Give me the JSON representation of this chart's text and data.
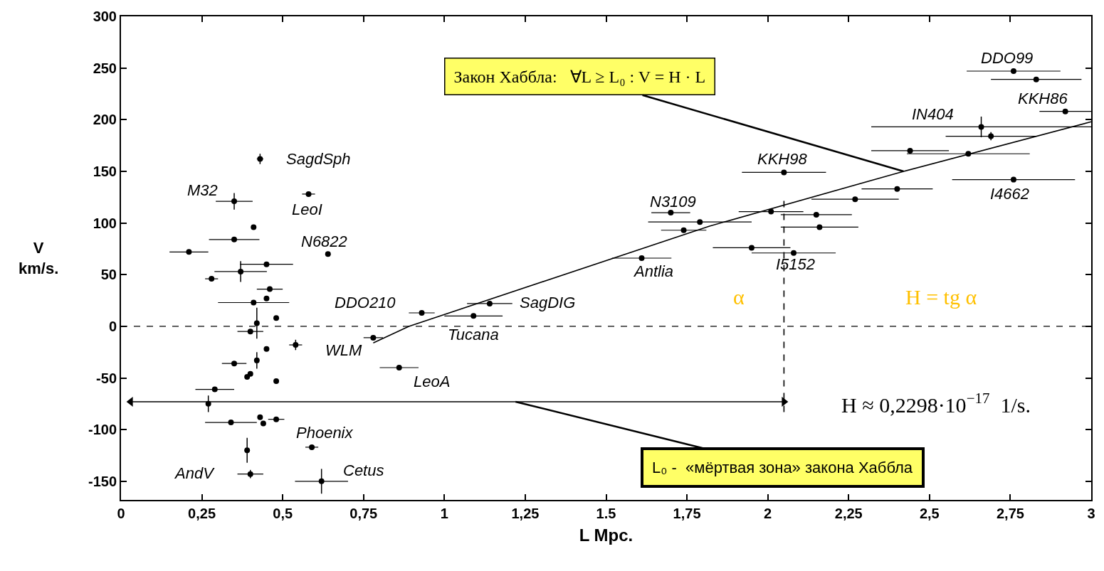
{
  "chart_data": {
    "type": "scatter",
    "xlabel": "L Mpc.",
    "ylabel": "V\nkm/s.",
    "xlim": [
      0,
      3
    ],
    "ylim": [
      -168,
      300
    ],
    "xticks": [
      0,
      {
        "value": 0.25,
        "label": "0,25"
      },
      {
        "value": 0.5,
        "label": "0,5"
      },
      {
        "value": 0.75,
        "label": "0,75"
      },
      1,
      {
        "value": 1.25,
        "label": "1,25"
      },
      1.5,
      {
        "value": 1.75,
        "label": "1,75"
      },
      2,
      {
        "value": 2.25,
        "label": "2,25"
      },
      {
        "value": 2.5,
        "label": "2,5"
      },
      {
        "value": 2.75,
        "label": "2,75"
      },
      3
    ],
    "yticks": [
      -150,
      -100,
      -50,
      0,
      50,
      100,
      150,
      200,
      250,
      300
    ],
    "series": [
      {
        "color": "#000000",
        "marker": "circle",
        "x": [
          0.43,
          0.35,
          0.58,
          0.41,
          0.35,
          0.21,
          0.64,
          0.45,
          0.37,
          0.28,
          0.46,
          0.45,
          0.41,
          0.48,
          0.42,
          0.4,
          0.54,
          0.45,
          0.42,
          0.35,
          0.4,
          0.39,
          0.48,
          0.29,
          0.27,
          0.34,
          0.43,
          0.44,
          0.48,
          0.59,
          0.39,
          0.4,
          0.62,
          0.78,
          0.93,
          0.86,
          1.09,
          1.14,
          1.61,
          1.7,
          1.79,
          1.74,
          2.76,
          2.83,
          2.92,
          2.66,
          2.69,
          2.44,
          2.62,
          2.05,
          2.76,
          2.4,
          2.27,
          2.01,
          2.15,
          2.16,
          1.95,
          2.08
        ],
        "values": [
          162,
          121,
          128,
          96,
          84,
          72,
          70,
          60,
          53,
          46,
          36,
          27,
          23,
          8,
          3,
          -5,
          -18,
          -22,
          -33,
          -36,
          -46,
          -49,
          -53,
          -61,
          -75,
          -93,
          -88,
          -94,
          -90,
          -117,
          -120,
          -143,
          -150,
          -11,
          13,
          -40,
          10,
          22,
          66,
          110,
          101,
          93,
          247,
          239,
          208,
          193,
          184,
          170,
          167,
          149,
          142,
          133,
          123,
          111,
          108,
          96,
          76,
          71
        ],
        "xerrors": [
          0.01,
          0.057,
          0.02,
          null,
          0.078,
          0.06,
          null,
          0.082,
          0.081,
          0.02,
          0.04,
          null,
          0.11,
          null,
          null,
          0.04,
          0.02,
          null,
          null,
          0.038,
          null,
          null,
          null,
          0.06,
          null,
          0.08,
          null,
          null,
          0.025,
          0.02,
          null,
          0.04,
          0.082,
          0.03,
          0.04,
          0.06,
          0.09,
          0.07,
          0.092,
          0.06,
          0.16,
          0.07,
          0.145,
          0.14,
          0.08,
          0.34,
          0.14,
          0.12,
          0.19,
          0.13,
          0.19,
          0.11,
          0.135,
          0.1,
          0.11,
          0.12,
          0.12,
          0.13
        ],
        "errors": [
          5,
          8,
          null,
          null,
          null,
          null,
          null,
          null,
          10,
          null,
          null,
          null,
          null,
          null,
          15,
          null,
          5,
          null,
          8,
          null,
          null,
          null,
          null,
          null,
          8,
          null,
          null,
          null,
          null,
          null,
          12,
          4,
          12,
          null,
          null,
          null,
          null,
          null,
          null,
          null,
          null,
          null,
          null,
          null,
          null,
          10,
          4,
          null,
          null,
          null,
          null,
          null,
          null,
          null,
          null,
          null,
          null,
          null
        ]
      },
      {
        "type": "line",
        "color": "#000000",
        "line_style": "solid",
        "marker": "none",
        "x": [
          0.78,
          0.89,
          1.82,
          2.42,
          3
        ],
        "values": [
          -16,
          0,
          97,
          150,
          198
        ]
      },
      {
        "type": "line",
        "color": "#000000",
        "line_style": "dashed",
        "marker": "none",
        "x": [
          2.05,
          2.05
        ],
        "values": [
          -83,
          123
        ]
      },
      {
        "type": "line",
        "color": "#000000",
        "line_style": "solid",
        "marker": "triangle",
        "x": [
          0.03,
          2.05
        ],
        "values": [
          -73,
          -73
        ]
      }
    ],
    "ref_lines": [
      {
        "axis": "y",
        "value": 0,
        "color": "#000000",
        "line_style": "dashed"
      }
    ],
    "annotations": [
      {
        "text": "SagdSph",
        "x": 0.43,
        "y": 162
      },
      {
        "text": "M32",
        "x": 0.35,
        "y": 121
      },
      {
        "text": "LeoI",
        "x": 0.58,
        "y": 128
      },
      {
        "text": "N6822",
        "x": 0.64,
        "y": 70
      },
      {
        "text": "DDO210",
        "x": 0.93,
        "y": 13
      },
      {
        "text": "SagDIG",
        "x": 1.14,
        "y": 22
      },
      {
        "text": "Tucana",
        "x": 1.09,
        "y": 10
      },
      {
        "text": "WLM",
        "x": 0.54,
        "y": -18
      },
      {
        "text": "LeoA",
        "x": 0.86,
        "y": -40
      },
      {
        "text": "Phoenix",
        "x": 0.59,
        "y": -117
      },
      {
        "text": "AndV",
        "x": 0.4,
        "y": -143
      },
      {
        "text": "Cetus",
        "x": 0.62,
        "y": -150
      },
      {
        "text": "Antlia",
        "x": 1.61,
        "y": 66
      },
      {
        "text": "N3109",
        "x": 1.7,
        "y": 110
      },
      {
        "text": "KKH98",
        "x": 2.05,
        "y": 149
      },
      {
        "text": "I5152",
        "x": 2.08,
        "y": 71
      },
      {
        "text": "IN404",
        "x": 2.66,
        "y": 193
      },
      {
        "text": "DDO99",
        "x": 2.76,
        "y": 247
      },
      {
        "text": "KKH86",
        "x": 2.92,
        "y": 208
      },
      {
        "text": "I4662",
        "x": 2.76,
        "y": 142
      },
      {
        "text": "Закон Хаббла:   ∀L ≥ L₀ : V = H · L",
        "x": 2.42,
        "y": 150
      },
      {
        "text": "L₀ -  «мёртвая зона» закона Хаббла",
        "x": 1.22,
        "y": -73
      },
      "α",
      "H = tg α",
      "H ≈ 0,2298·10$^{−17}$  1/s."
    ]
  }
}
